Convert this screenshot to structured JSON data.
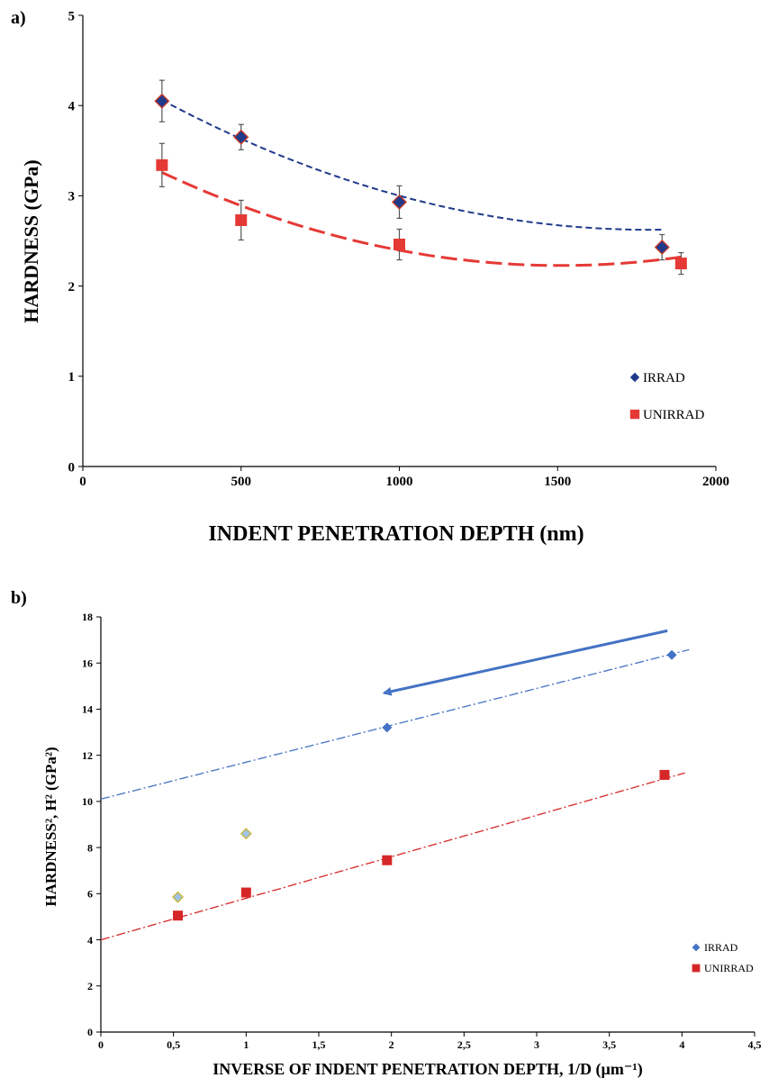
{
  "colors": {
    "irrad_a": "#1f3a8a",
    "irrad_a_outline": "#c0392b",
    "unirrad_a": "#e53935",
    "irrad_b": "#4472c4",
    "irrad_b_alt": "#9dc3e6",
    "unirrad_b": "#d62728",
    "arrow": "#4472c4",
    "axis": "#000000",
    "errorbar": "#555555"
  },
  "chart_data": [
    {
      "panel_label": "a)",
      "type": "scatter",
      "title": "",
      "xlabel": "INDENT PENETRATION DEPTH (nm)",
      "ylabel": "HARDNESS (GPa)",
      "xlim": [
        0,
        2000
      ],
      "ylim": [
        0,
        5
      ],
      "xticks": [
        0,
        500,
        1000,
        1500,
        2000
      ],
      "yticks": [
        0,
        1,
        2,
        3,
        4,
        5
      ],
      "legend_position": "bottom-right",
      "grid": false,
      "series": [
        {
          "name": "IRRAD",
          "marker": "diamond",
          "color_key": "irrad_a",
          "x": [
            250,
            500,
            1000,
            1830
          ],
          "y": [
            4.05,
            3.65,
            2.93,
            2.43
          ],
          "err": [
            0.23,
            0.14,
            0.18,
            0.14
          ],
          "trend": {
            "style": "dashed",
            "poly": [
              4.5657,
              -0.002172,
              6.072e-07
            ],
            "xrange": [
              250,
              1830
            ]
          }
        },
        {
          "name": "UNIRRAD",
          "marker": "square",
          "color_key": "unirrad_a",
          "x": [
            250,
            500,
            1000,
            1890
          ],
          "y": [
            3.34,
            2.73,
            2.46,
            2.25
          ],
          "err": [
            0.24,
            0.22,
            0.17,
            0.12
          ],
          "trend": {
            "style": "long-dashed",
            "poly": [
              3.7089,
              -0.001963,
              6.502e-07
            ],
            "xrange": [
              250,
              1890
            ]
          }
        }
      ]
    },
    {
      "panel_label": "b)",
      "type": "scatter",
      "title": "",
      "xlabel": "INVERSE OF INDENT PENETRATION DEPTH, 1/D (µm⁻¹)",
      "ylabel": "HARDNESS², H² (GPa²)",
      "xlim": [
        0,
        4.5
      ],
      "ylim": [
        0,
        18
      ],
      "xticks": [
        "0",
        "0,5",
        "1",
        "1,5",
        "2",
        "2,5",
        "3",
        "3,5",
        "4",
        "4,5"
      ],
      "yticks": [
        0,
        2,
        4,
        6,
        8,
        10,
        12,
        14,
        16,
        18
      ],
      "legend_position": "bottom-right",
      "grid": false,
      "series": [
        {
          "name": "IRRAD",
          "marker": "diamond",
          "color_key": "irrad_b",
          "x": [
            0.53,
            1.0,
            1.97,
            3.93
          ],
          "y": [
            5.85,
            8.6,
            13.2,
            16.35
          ],
          "trend": {
            "style": "dash-dot",
            "line": [
              10.1,
              1.6
            ],
            "xrange": [
              0,
              4.05
            ]
          }
        },
        {
          "name": "UNIRRAD",
          "marker": "square",
          "color_key": "unirrad_b",
          "x": [
            0.53,
            1.0,
            1.97,
            3.88
          ],
          "y": [
            5.05,
            6.05,
            7.45,
            11.15
          ],
          "trend": {
            "style": "dash-dot",
            "line": [
              4.0,
              1.8
            ],
            "xrange": [
              0,
              4.02
            ]
          }
        }
      ],
      "annotation_arrow": {
        "from": [
          3.9,
          17.4
        ],
        "to": [
          1.95,
          14.7
        ]
      }
    }
  ]
}
